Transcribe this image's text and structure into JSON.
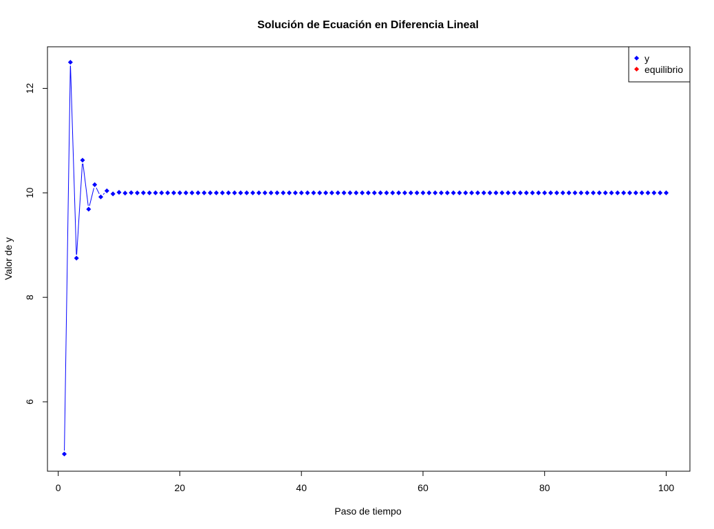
{
  "chart_data": {
    "type": "line",
    "title": "Solución de Ecuación en Diferencia Lineal",
    "xlabel": "Paso de tiempo",
    "ylabel": "Valor de y",
    "xlim": [
      1,
      100
    ],
    "ylim": [
      5,
      12.5
    ],
    "xticks": [
      0,
      20,
      40,
      60,
      80,
      100
    ],
    "yticks": [
      6,
      8,
      10,
      12
    ],
    "grid": false,
    "legend_position": "top-right",
    "series": [
      {
        "name": "y",
        "color": "#0000ff",
        "x": [
          1,
          2,
          3,
          4,
          5,
          6,
          7,
          8,
          9,
          10,
          11,
          12,
          13,
          14,
          15,
          16,
          17,
          18,
          19,
          20,
          21,
          22,
          23,
          24,
          25,
          26,
          27,
          28,
          29,
          30,
          31,
          32,
          33,
          34,
          35,
          36,
          37,
          38,
          39,
          40,
          41,
          42,
          43,
          44,
          45,
          46,
          47,
          48,
          49,
          50,
          51,
          52,
          53,
          54,
          55,
          56,
          57,
          58,
          59,
          60,
          61,
          62,
          63,
          64,
          65,
          66,
          67,
          68,
          69,
          70,
          71,
          72,
          73,
          74,
          75,
          76,
          77,
          78,
          79,
          80,
          81,
          82,
          83,
          84,
          85,
          86,
          87,
          88,
          89,
          90,
          91,
          92,
          93,
          94,
          95,
          96,
          97,
          98,
          99,
          100
        ],
        "values": [
          5,
          12.5,
          8.75,
          10.625,
          9.6875,
          10.15625,
          9.921875,
          10.0390625,
          9.98046875,
          10.009765625,
          9.9951171875,
          10.00244140625,
          9.998779296875,
          10.0006103515625,
          9.99969482421875,
          10.000152587890625,
          9.999923706054688,
          10.000038146972656,
          9.999980926513672,
          10.000009536743164,
          10,
          10,
          10,
          10,
          10,
          10,
          10,
          10,
          10,
          10,
          10,
          10,
          10,
          10,
          10,
          10,
          10,
          10,
          10,
          10,
          10,
          10,
          10,
          10,
          10,
          10,
          10,
          10,
          10,
          10,
          10,
          10,
          10,
          10,
          10,
          10,
          10,
          10,
          10,
          10,
          10,
          10,
          10,
          10,
          10,
          10,
          10,
          10,
          10,
          10,
          10,
          10,
          10,
          10,
          10,
          10,
          10,
          10,
          10,
          10,
          10,
          10,
          10,
          10,
          10,
          10,
          10,
          10,
          10,
          10,
          10,
          10,
          10,
          10,
          10,
          10,
          10,
          10,
          10,
          10
        ]
      },
      {
        "name": "equilibrio",
        "color": "#ff0000",
        "x": [],
        "values": []
      }
    ]
  }
}
